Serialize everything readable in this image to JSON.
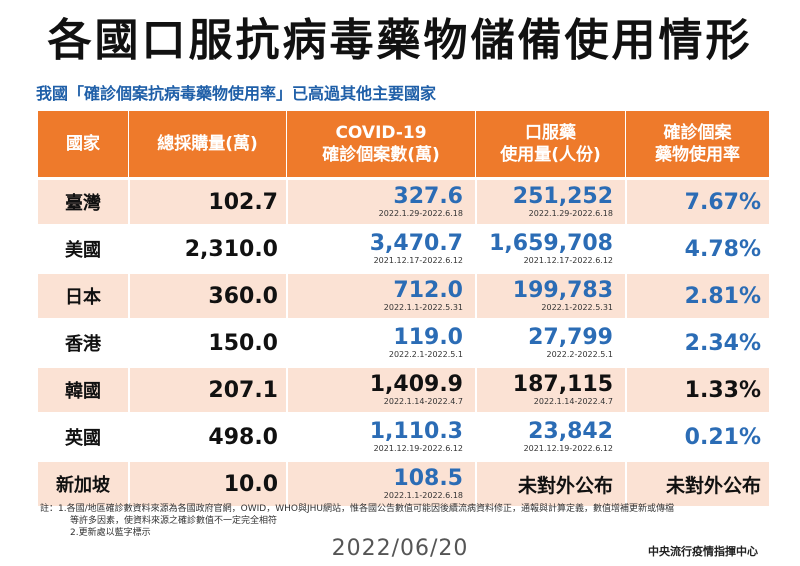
{
  "title": "各國口服抗病毒藥物儲備使用情形",
  "subtitle": "我國「確診個案抗病毒藥物使用率」已高過其他主要國家",
  "headers": {
    "country": "國家",
    "purchase": "總採購量(萬)",
    "cases_line1": "COVID-19",
    "cases_line2": "確診個案數(萬)",
    "usage_line1": "口服藥",
    "usage_line2": "使用量(人份)",
    "rate_line1": "確診個案",
    "rate_line2": "藥物使用率"
  },
  "rows": [
    {
      "country": "臺灣",
      "purchase": "102.7",
      "cases": "327.6",
      "cases_period": "2022.1.29-2022.6.18",
      "usage": "251,252",
      "usage_period": "2022.1.29-2022.6.18",
      "rate": "7.67%"
    },
    {
      "country": "美國",
      "purchase": "2,310.0",
      "cases": "3,470.7",
      "cases_period": "2021.12.17-2022.6.12",
      "usage": "1,659,708",
      "usage_period": "2021.12.17-2022.6.12",
      "rate": "4.78%"
    },
    {
      "country": "日本",
      "purchase": "360.0",
      "cases": "712.0",
      "cases_period": "2022.1.1-2022.5.31",
      "usage": "199,783",
      "usage_period": "2022.1-2022.5.31",
      "rate": "2.81%"
    },
    {
      "country": "香港",
      "purchase": "150.0",
      "cases": "119.0",
      "cases_period": "2022.2.1-2022.5.1",
      "usage": "27,799",
      "usage_period": "2022.2-2022.5.1",
      "rate": "2.34%"
    },
    {
      "country": "韓國",
      "purchase": "207.1",
      "cases": "1,409.9",
      "cases_period": "2022.1.14-2022.4.7",
      "usage": "187,115",
      "usage_period": "2022.1.14-2022.4.7",
      "rate": "1.33%"
    },
    {
      "country": "英國",
      "purchase": "498.0",
      "cases": "1,110.3",
      "cases_period": "2021.12.19-2022.6.12",
      "usage": "23,842",
      "usage_period": "2021.12.19-2022.6.12",
      "rate": "0.21%"
    },
    {
      "country": "新加坡",
      "purchase": "10.0",
      "cases": "108.5",
      "cases_period": "2022.1.1-2022.6.18",
      "usage": "未對外公布",
      "usage_period": "",
      "rate": "未對外公布"
    }
  ],
  "colors": {
    "header_orange": "#ee7a2b",
    "row_peach": "#fbe2d4",
    "updated_blue": "#2b6cb5",
    "subtitle_blue": "#1f5fa8"
  },
  "notes": {
    "line1": "註：1.各國/地區確診數資料來源為各國政府官網，OWID，WHO與JHU網站，惟各國公告數值可能因後續流病資料修正，通報與計算定義，數值增補更新或傳檔",
    "line2": "等許多因素，使資料來源之確診數值不一定完全相符",
    "line3": "2.更新處以藍字標示"
  },
  "date": "2022/06/20",
  "org": "中央流行疫情指揮中心"
}
